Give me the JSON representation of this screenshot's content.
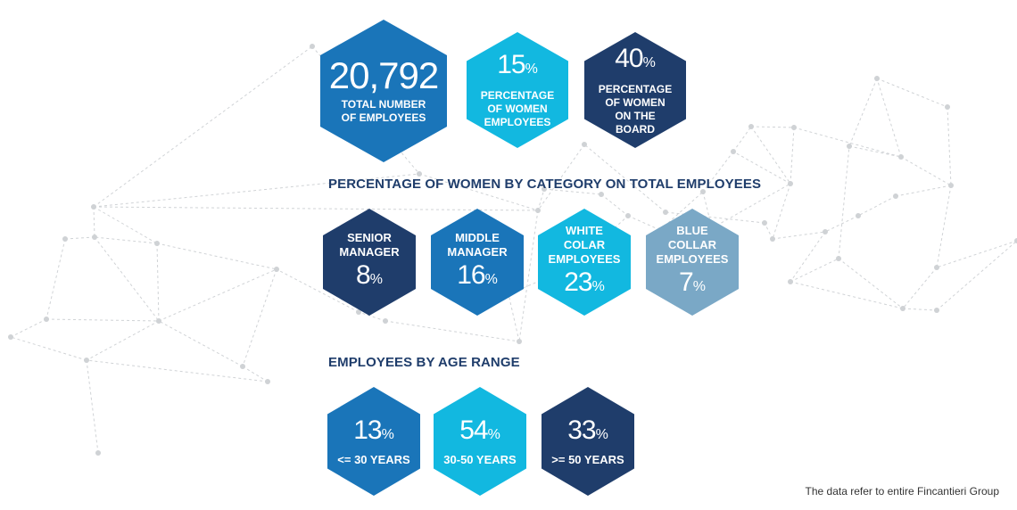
{
  "kpis": {
    "total_employees": {
      "value": "20,792",
      "label": "TOTAL NUMBER OF EMPLOYEES"
    },
    "women_employees": {
      "value": "15",
      "unit": "%",
      "label": "PERCENTAGE OF WOMEN EMPLOYEES"
    },
    "women_board": {
      "value": "40",
      "unit": "%",
      "label": "PERCENTAGE OF WOMEN ON THE BOARD"
    }
  },
  "women_by_category": {
    "title": "PERCENTAGE OF WOMEN BY CATEGORY ON TOTAL EMPLOYEES",
    "items": [
      {
        "label": "SENIOR MANAGER",
        "value": "8",
        "unit": "%",
        "color": "#1f3d6b"
      },
      {
        "label": "MIDDLE MANAGER",
        "value": "16",
        "unit": "%",
        "color": "#1a75b9"
      },
      {
        "label": "WHITE COLAR EMPLOYEES",
        "value": "23",
        "unit": "%",
        "color": "#12b8e0"
      },
      {
        "label": "BLUE COLLAR EMPLOYEES",
        "value": "7",
        "unit": "%",
        "color": "#7aa8c6"
      }
    ]
  },
  "age_range": {
    "title": "EMPLOYEES BY AGE RANGE",
    "items": [
      {
        "value": "13",
        "unit": "%",
        "label": "<= 30 YEARS",
        "color": "#1a75b9"
      },
      {
        "value": "54",
        "unit": "%",
        "label": "30-50 YEARS",
        "color": "#12b8e0"
      },
      {
        "value": "33",
        "unit": "%",
        "label": ">= 50 YEARS",
        "color": "#1f3d6b"
      }
    ]
  },
  "footnote": "The data refer to entire Fincantieri Group"
}
